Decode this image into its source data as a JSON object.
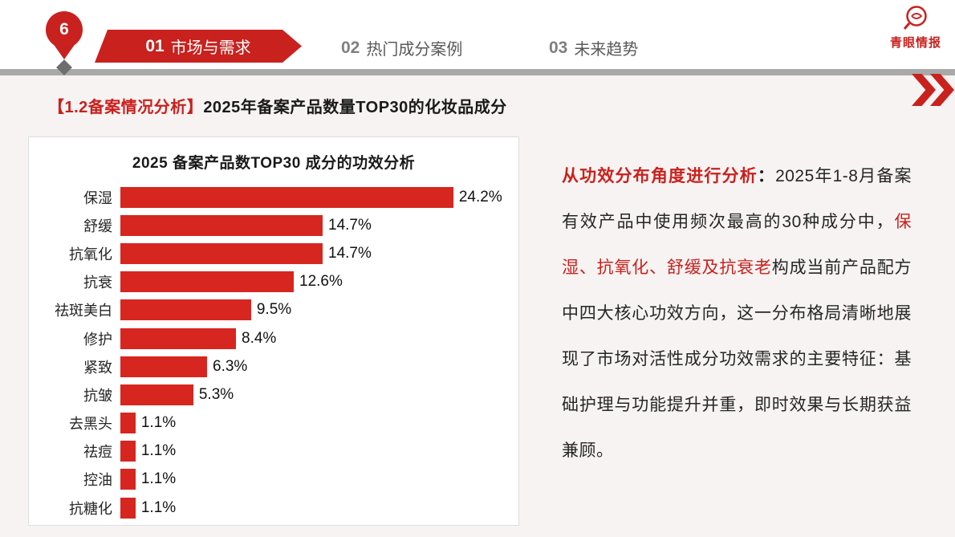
{
  "header": {
    "page_number": "6",
    "tabs": [
      {
        "num": "01",
        "label": "市场与需求",
        "active": true
      },
      {
        "num": "02",
        "label": "热门成分案例",
        "active": false
      },
      {
        "num": "03",
        "label": "未来趋势",
        "active": false
      }
    ],
    "logo_text": "青眼情报"
  },
  "title": {
    "bracket": "【1.2备案情况分析】",
    "rest": "2025年备案产品数量TOP30的化妆品成分"
  },
  "chart_data": {
    "type": "bar",
    "orientation": "horizontal",
    "title": "2025 备案产品数TOP30 成分的功效分析",
    "categories": [
      "保湿",
      "舒缓",
      "抗氧化",
      "抗衰",
      "祛斑美白",
      "修护",
      "紧致",
      "抗皱",
      "去黑头",
      "祛痘",
      "控油",
      "抗糖化"
    ],
    "values": [
      24.2,
      14.7,
      14.7,
      12.6,
      9.5,
      8.4,
      6.3,
      5.3,
      1.1,
      1.1,
      1.1,
      1.1
    ],
    "labels": [
      "24.2%",
      "14.7%",
      "14.7%",
      "12.6%",
      "9.5%",
      "8.4%",
      "6.3%",
      "5.3%",
      "1.1%",
      "1.1%",
      "1.1%",
      "1.1%"
    ],
    "bar_color": "#d7261f",
    "xlim": [
      0,
      28
    ],
    "grid": false,
    "legend": "none"
  },
  "analysis": {
    "lead": "从功效分布角度进行分析",
    "colon": "：",
    "body_before": "2025年1-8月备案有效产品中使用频次最高的30种成分中，",
    "highlight": "保湿、抗氧化、舒缓及抗衰老",
    "body_after": "构成当前产品配方中四大核心功效方向，这一分布格局清晰地展现了市场对活性成分功效需求的主要特征：基础护理与功能提升并重，即时效果与长期获益兼顾。"
  },
  "colors": {
    "accent": "#c9211e",
    "bar": "#d7261f",
    "divider": "#a9a9a9"
  }
}
